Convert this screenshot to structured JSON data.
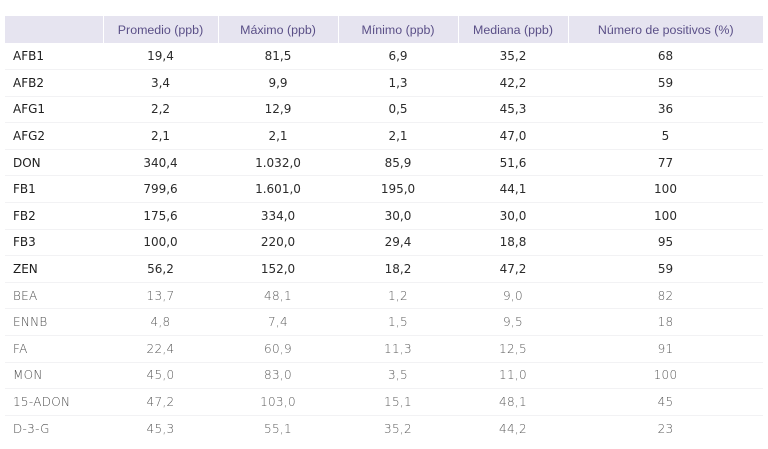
{
  "table": {
    "headers": [
      "",
      "Promedio (ppb)",
      "Máximo (ppb)",
      "Mínimo (ppb)",
      "Mediana (ppb)",
      "Número de positivos (%)"
    ],
    "rows": [
      {
        "label": "AFB1",
        "promedio": "19,4",
        "maximo": "81,5",
        "minimo": "6,9",
        "mediana": "35,2",
        "positivos": "68",
        "alt": false
      },
      {
        "label": "AFB2",
        "promedio": "3,4",
        "maximo": "9,9",
        "minimo": "1,3",
        "mediana": "42,2",
        "positivos": "59",
        "alt": false
      },
      {
        "label": "AFG1",
        "promedio": "2,2",
        "maximo": "12,9",
        "minimo": "0,5",
        "mediana": "45,3",
        "positivos": "36",
        "alt": false
      },
      {
        "label": "AFG2",
        "promedio": "2,1",
        "maximo": "2,1",
        "minimo": "2,1",
        "mediana": "47,0",
        "positivos": "5",
        "alt": false
      },
      {
        "label": "DON",
        "promedio": "340,4",
        "maximo": "1.032,0",
        "minimo": "85,9",
        "mediana": "51,6",
        "positivos": "77",
        "alt": false
      },
      {
        "label": "FB1",
        "promedio": "799,6",
        "maximo": "1.601,0",
        "minimo": "195,0",
        "mediana": "44,1",
        "positivos": "100",
        "alt": false
      },
      {
        "label": "FB2",
        "promedio": "175,6",
        "maximo": "334,0",
        "minimo": "30,0",
        "mediana": "30,0",
        "positivos": "100",
        "alt": false
      },
      {
        "label": "FB3",
        "promedio": "100,0",
        "maximo": "220,0",
        "minimo": "29,4",
        "mediana": "18,8",
        "positivos": "95",
        "alt": false
      },
      {
        "label": "ZEN",
        "promedio": "56,2",
        "maximo": "152,0",
        "minimo": "18,2",
        "mediana": "47,2",
        "positivos": "59",
        "alt": false
      },
      {
        "label": "BEA",
        "promedio": "13,7",
        "maximo": "48,1",
        "minimo": "1,2",
        "mediana": "9,0",
        "positivos": "82",
        "alt": true
      },
      {
        "label": "ENNB",
        "promedio": "4,8",
        "maximo": "7,4",
        "minimo": "1,5",
        "mediana": "9,5",
        "positivos": "18",
        "alt": true
      },
      {
        "label": "FA",
        "promedio": "22,4",
        "maximo": "60,9",
        "minimo": "11,3",
        "mediana": "12,5",
        "positivos": "91",
        "alt": true
      },
      {
        "label": "MON",
        "promedio": "45,0",
        "maximo": "83,0",
        "minimo": "3,5",
        "mediana": "11,0",
        "positivos": "100",
        "alt": true
      },
      {
        "label": "15-ADON",
        "promedio": "47,2",
        "maximo": "103,0",
        "minimo": "15,1",
        "mediana": "48,1",
        "positivos": "45",
        "alt": true
      },
      {
        "label": "D-3-G",
        "promedio": "45,3",
        "maximo": "55,1",
        "minimo": "35,2",
        "mediana": "44,2",
        "positivos": "23",
        "alt": true
      }
    ]
  },
  "colors": {
    "header_bg": "#e6e4f0",
    "header_text": "#5a4f87"
  }
}
